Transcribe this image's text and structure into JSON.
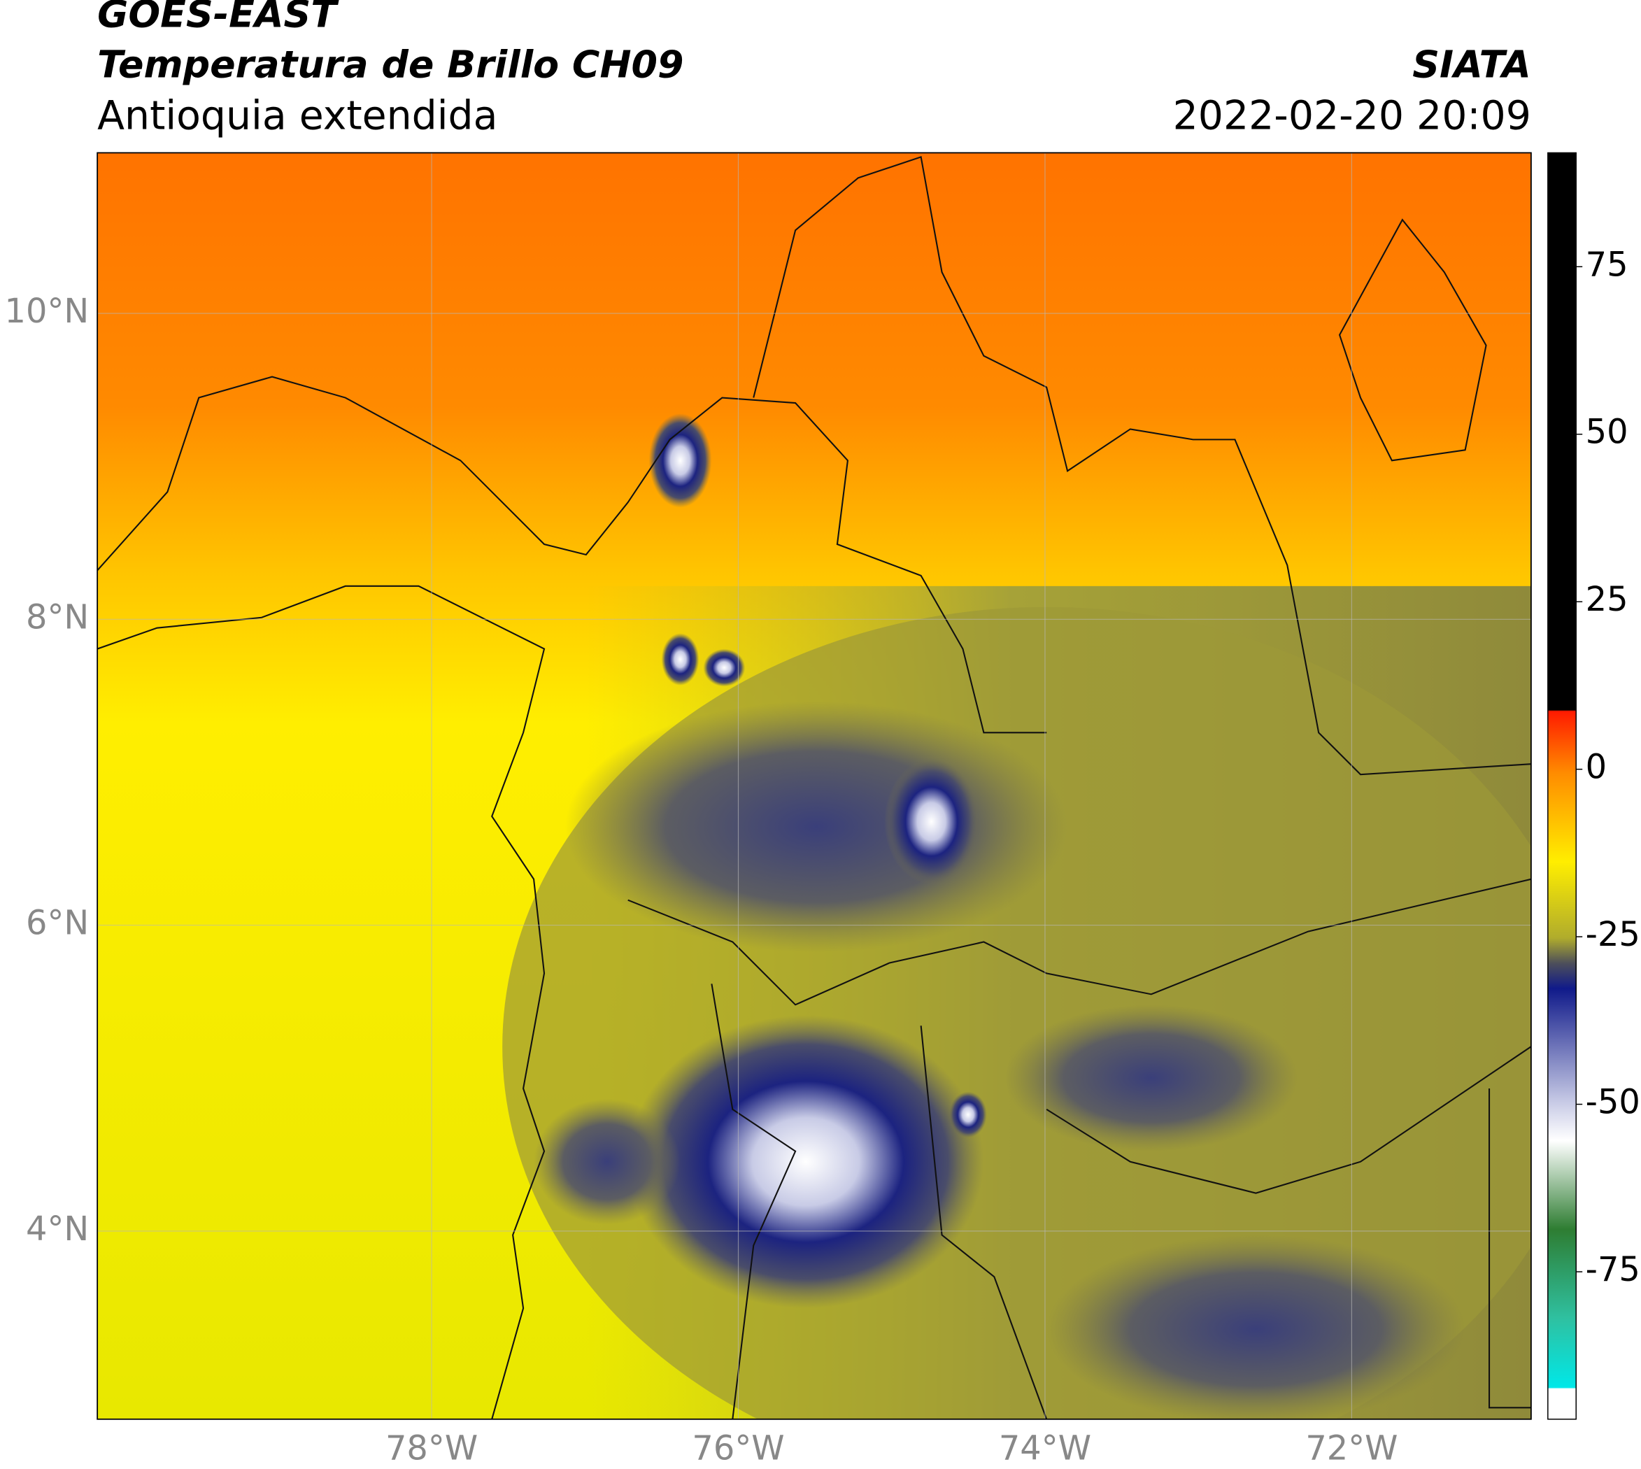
{
  "header": {
    "title": "GOES-EAST",
    "subtitle": "Temperatura de Brillo CH09",
    "region": "Antioquia extendida",
    "source": "SIATA",
    "datetime": "2022-02-20 20:09"
  },
  "map": {
    "lonlim": [
      -80.18,
      -70.83
    ],
    "latlim": [
      2.77,
      11.05
    ],
    "lat_ticks": [
      {
        "value": 10,
        "label": "10°N"
      },
      {
        "value": 8,
        "label": "8°N"
      },
      {
        "value": 6,
        "label": "6°N"
      },
      {
        "value": 4,
        "label": "4°N"
      }
    ],
    "lon_ticks": [
      {
        "value": -78,
        "label": "78°W"
      },
      {
        "value": -76,
        "label": "76°W"
      },
      {
        "value": -74,
        "label": "74°W"
      },
      {
        "value": -72,
        "label": "72°W"
      }
    ]
  },
  "colorbar": {
    "clim": [
      -97,
      92
    ],
    "ticks": [
      75,
      50,
      25,
      0,
      -25,
      -50,
      -75
    ]
  }
}
